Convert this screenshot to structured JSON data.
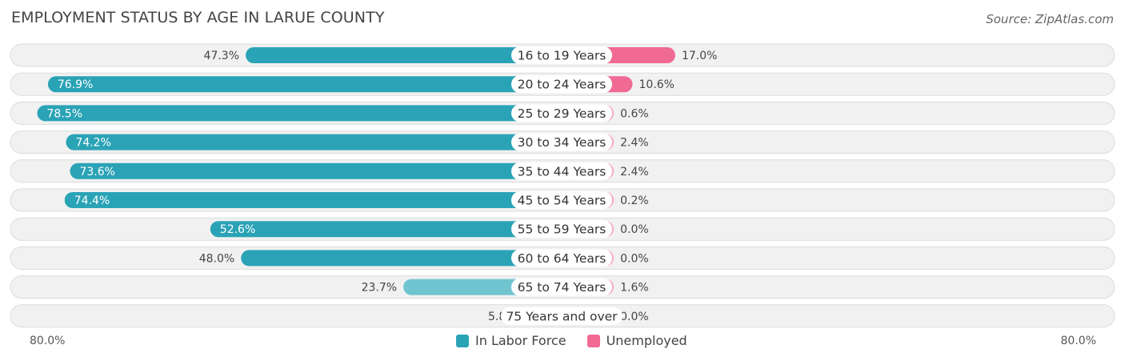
{
  "title": "EMPLOYMENT STATUS BY AGE IN LARUE COUNTY",
  "source": "Source: ZipAtlas.com",
  "colors": {
    "labor_strong": "#2ba3b6",
    "labor_light": "#6fc4d0",
    "unemp_strong": "#f06a94",
    "unemp_light": "#f7aac3",
    "row_bg": "#f1f1f1",
    "row_border": "#dcdcdc"
  },
  "axis": {
    "left_label": "80.0%",
    "right_label": "80.0%"
  },
  "legend": {
    "labor": "In Labor Force",
    "unemployed": "Unemployed"
  },
  "chart_data": {
    "type": "bar",
    "orientation": "diverging-horizontal",
    "title": "EMPLOYMENT STATUS BY AGE IN LARUE COUNTY",
    "categories": [
      "16 to 19 Years",
      "20 to 24 Years",
      "25 to 29 Years",
      "30 to 34 Years",
      "35 to 44 Years",
      "45 to 54 Years",
      "55 to 59 Years",
      "60 to 64 Years",
      "65 to 74 Years",
      "75 Years and over"
    ],
    "series": [
      {
        "name": "In Labor Force",
        "values": [
          47.3,
          76.9,
          78.5,
          74.2,
          73.6,
          74.4,
          52.6,
          48.0,
          23.7,
          5.8
        ],
        "labels": [
          "47.3%",
          "76.9%",
          "78.5%",
          "74.2%",
          "73.6%",
          "74.4%",
          "52.6%",
          "48.0%",
          "23.7%",
          "5.8%"
        ]
      },
      {
        "name": "Unemployed",
        "values": [
          17.0,
          10.6,
          0.6,
          2.4,
          2.4,
          0.2,
          0.0,
          0.0,
          1.6,
          0.0
        ],
        "labels": [
          "17.0%",
          "10.6%",
          "0.6%",
          "2.4%",
          "2.4%",
          "0.2%",
          "0.0%",
          "0.0%",
          "1.6%",
          "0.0%"
        ]
      }
    ],
    "xlim": [
      0,
      80
    ],
    "xlabel": "",
    "ylabel": ""
  }
}
